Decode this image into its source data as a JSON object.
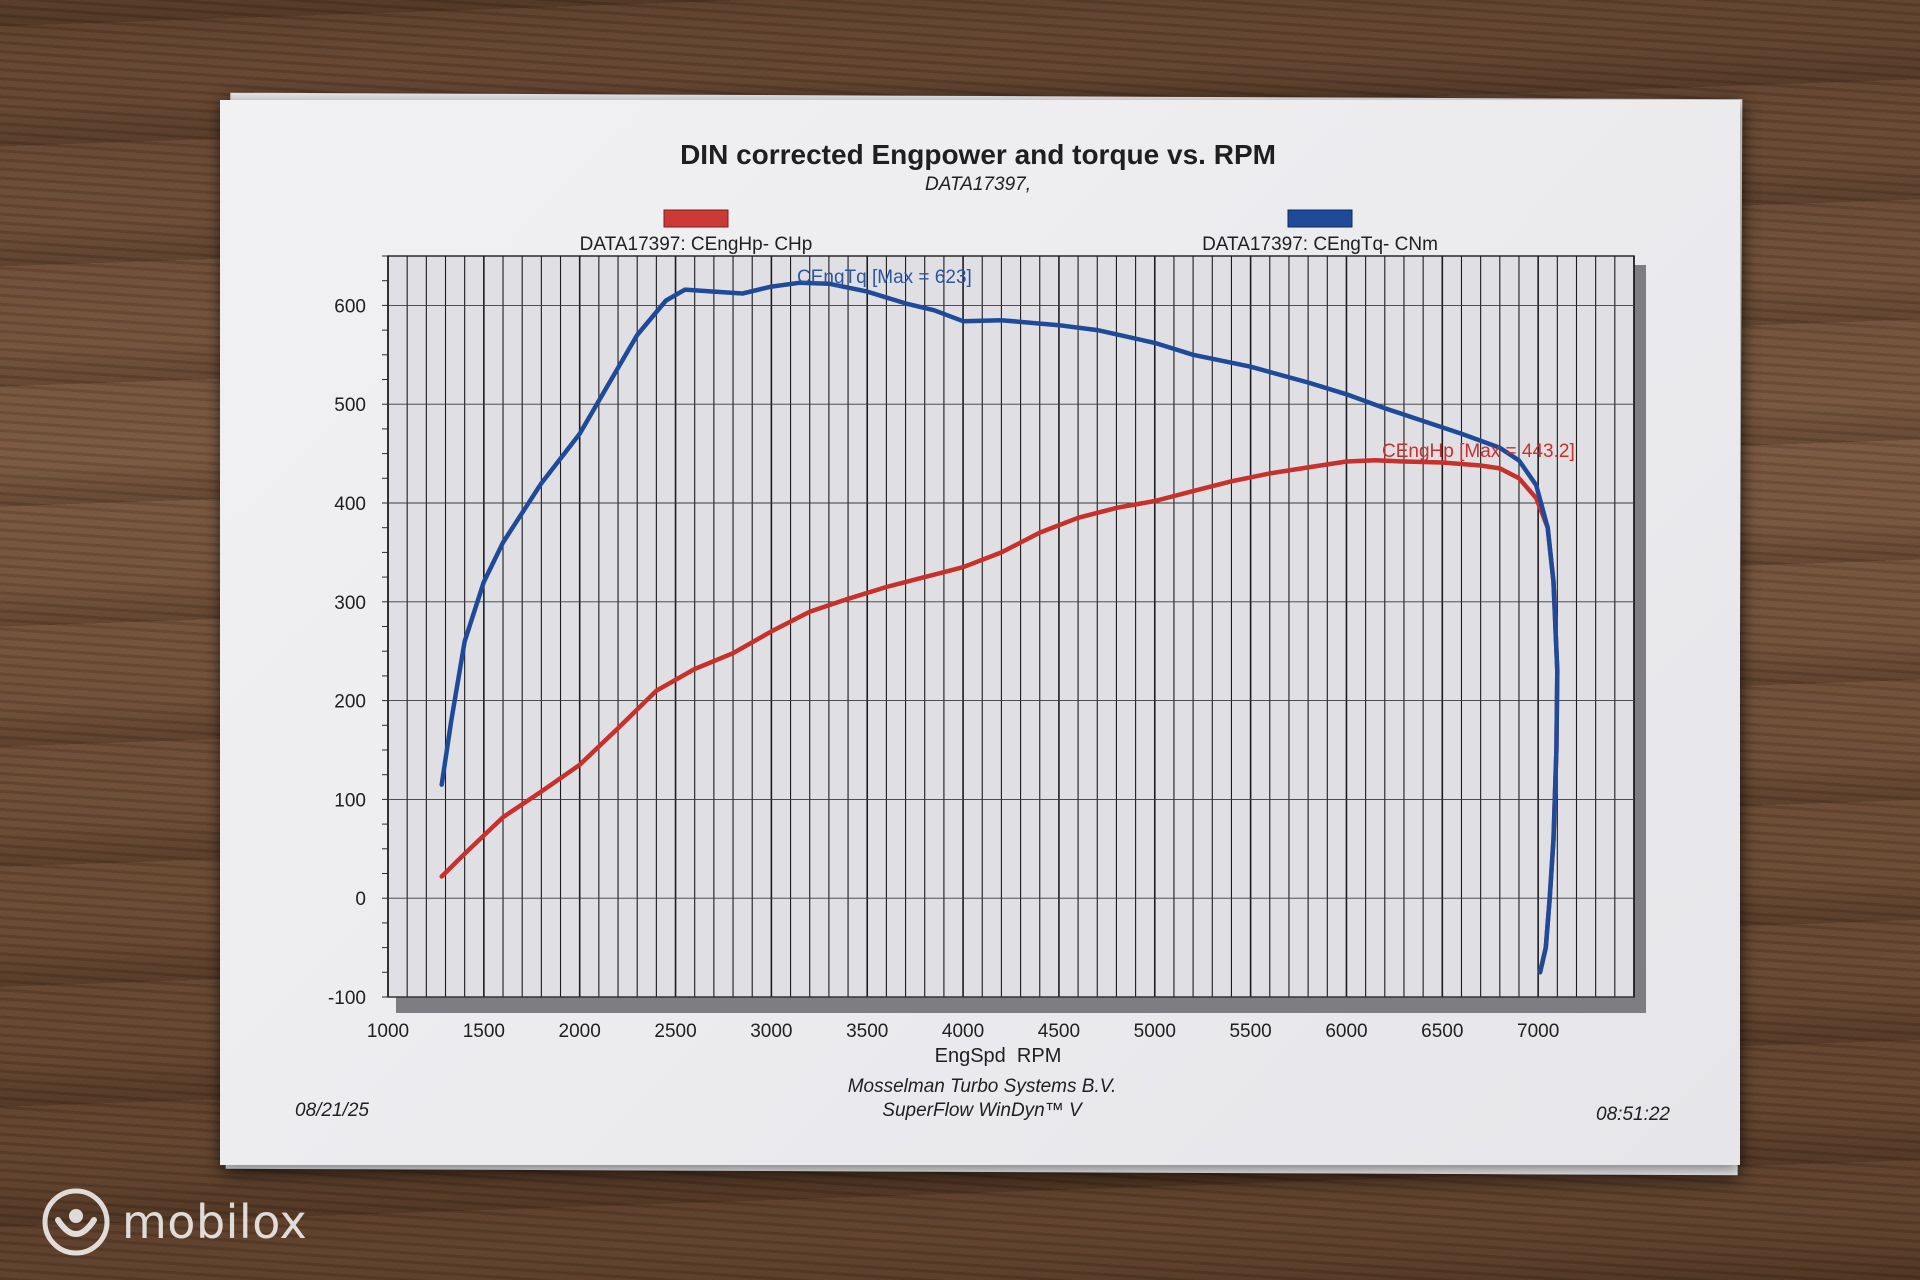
{
  "chart_data": {
    "type": "line",
    "title": "DIN corrected Engpower and torque vs. RPM",
    "subtitle": "DATA17397,",
    "xlabel": "EngSpd  RPM",
    "ylabel": "",
    "xlim": [
      1000,
      7500
    ],
    "ylim": [
      -100,
      650
    ],
    "x_ticks": [
      "1000",
      "1500",
      "2000",
      "2500",
      "3000",
      "3500",
      "4000",
      "4500",
      "5000",
      "5500",
      "6000",
      "6500",
      "7000"
    ],
    "y_ticks": [
      "-100",
      "0",
      "100",
      "200",
      "300",
      "400",
      "500",
      "600"
    ],
    "grid": true,
    "legend_position": "top",
    "legend": [
      {
        "label": "DATA17397: CEngHp-  CHp",
        "color": "#cc3a35"
      },
      {
        "label": "DATA17397: CEngTq-  CNm",
        "color": "#1f4a9a"
      }
    ],
    "series": [
      {
        "name": "CEngHp",
        "color": "#c8302c",
        "annotation": "CEngHp [Max = 443.2]",
        "x": [
          1280,
          1400,
          1600,
          1800,
          2000,
          2200,
          2400,
          2600,
          2800,
          3000,
          3200,
          3400,
          3600,
          3800,
          4000,
          4200,
          4400,
          4600,
          4800,
          5000,
          5200,
          5400,
          5600,
          5800,
          6000,
          6150,
          6300,
          6500,
          6700,
          6800,
          6900,
          6990,
          7050,
          7080,
          7100,
          7095,
          7080,
          7060,
          7040,
          7010
        ],
        "y": [
          22,
          45,
          82,
          108,
          135,
          172,
          210,
          232,
          248,
          270,
          290,
          303,
          315,
          325,
          335,
          350,
          370,
          385,
          395,
          402,
          412,
          422,
          430,
          436,
          442,
          443.2,
          442,
          441,
          438,
          435,
          425,
          405,
          375,
          320,
          230,
          150,
          60,
          0,
          -50,
          -75
        ]
      },
      {
        "name": "CEngTq",
        "color": "#1f4a9a",
        "annotation": "CEngTq [Max = 623]",
        "x": [
          1280,
          1330,
          1400,
          1500,
          1600,
          1800,
          2000,
          2150,
          2300,
          2450,
          2550,
          2700,
          2850,
          3000,
          3150,
          3300,
          3500,
          3700,
          3850,
          4000,
          4200,
          4500,
          4700,
          5000,
          5200,
          5500,
          5800,
          6000,
          6200,
          6400,
          6600,
          6800,
          6900,
          6990,
          7050,
          7080,
          7100,
          7095,
          7080,
          7060,
          7040,
          7010
        ],
        "y": [
          115,
          180,
          260,
          320,
          360,
          420,
          470,
          520,
          570,
          605,
          616,
          614,
          612,
          619,
          623,
          622,
          614,
          602,
          595,
          584,
          585,
          580,
          575,
          562,
          550,
          538,
          522,
          510,
          496,
          483,
          470,
          456,
          443,
          418,
          375,
          320,
          230,
          150,
          60,
          0,
          -50,
          -75
        ]
      }
    ]
  },
  "footer": {
    "date": "08/21/25",
    "company": "Mosselman Turbo Systems B.V.",
    "software": "SuperFlow WinDyn™ V",
    "time": "08:51:22"
  },
  "watermark": {
    "text": "mobilox"
  }
}
